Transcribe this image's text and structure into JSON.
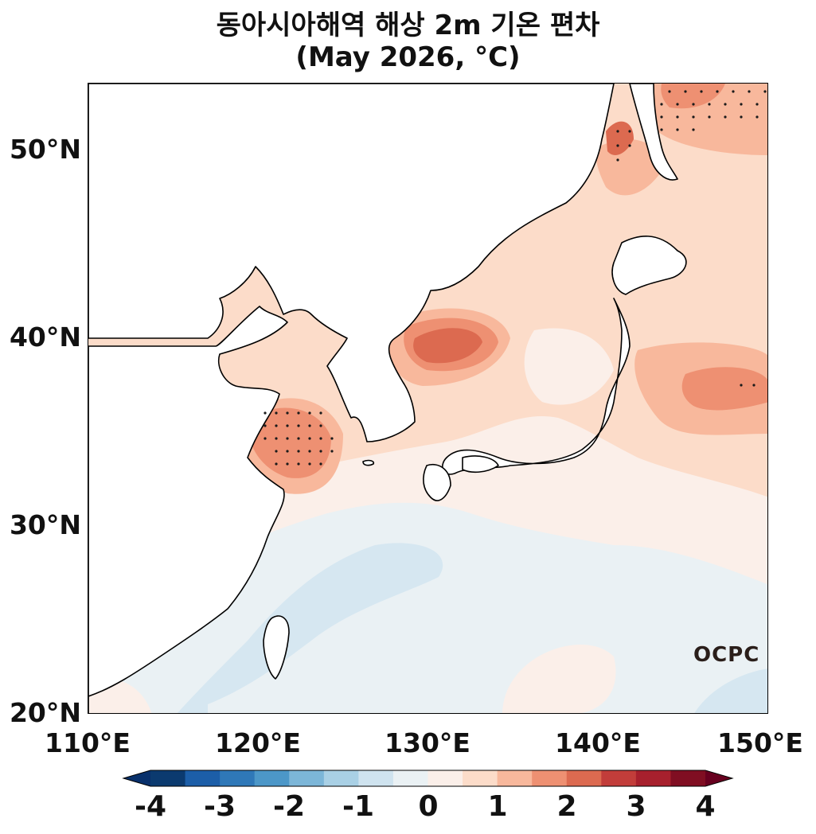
{
  "title": {
    "line1": "동아시아해역 해상 2m 기온 편차",
    "line2": "(May 2026, °C)"
  },
  "axes": {
    "lat_labels": [
      "50°N",
      "40°N",
      "30°N",
      "20°N"
    ],
    "lon_labels": [
      "110°E",
      "120°E",
      "130°E",
      "140°E",
      "150°E"
    ],
    "lat_range": [
      20,
      53.5
    ],
    "lon_range": [
      110,
      150
    ]
  },
  "colorbar": {
    "labels": [
      "-4",
      "-3",
      "-2",
      "-1",
      "0",
      "1",
      "2",
      "3",
      "4"
    ],
    "levels": [
      -4,
      -3.5,
      -3,
      -2.5,
      -2,
      -1.5,
      -1,
      -0.5,
      0,
      0.5,
      1,
      1.5,
      2,
      2.5,
      3,
      3.5,
      4
    ],
    "colors": [
      "#0b3a6f",
      "#1c5ea8",
      "#2f78b8",
      "#4c97c8",
      "#7cb6d8",
      "#a9d0e5",
      "#cfe3ef",
      "#eaf1f4",
      "#fbefe9",
      "#fcdcc9",
      "#f8b89c",
      "#ee9072",
      "#dc6a50",
      "#c23d3a",
      "#a7202d",
      "#800e22"
    ],
    "extend_low_color": "#08306b",
    "extend_high_color": "#67001f"
  },
  "logo": "OCPC",
  "colors": {
    "land": "#ffffff",
    "coastline": "#000000",
    "significance_dots": "#1a1a1a"
  }
}
